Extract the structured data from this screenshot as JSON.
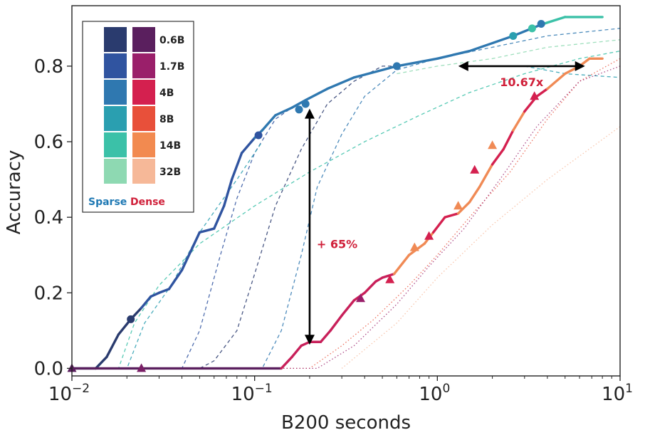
{
  "chart_data": {
    "type": "line",
    "title": "",
    "xlabel": "B200 seconds",
    "ylabel": "Accuracy",
    "xscale": "log",
    "xlim": [
      0.01,
      10
    ],
    "ylim": [
      -0.02,
      0.96
    ],
    "xticks": [
      {
        "value": 0.01,
        "base": "10",
        "exp": "−2"
      },
      {
        "value": 0.1,
        "base": "10",
        "exp": "−1"
      },
      {
        "value": 1,
        "base": "10",
        "exp": "0"
      },
      {
        "value": 10,
        "base": "10",
        "exp": "1"
      }
    ],
    "yticks": [
      {
        "value": 0.0,
        "label": "0.0"
      },
      {
        "value": 0.2,
        "label": "0.2"
      },
      {
        "value": 0.4,
        "label": "0.4"
      },
      {
        "value": 0.6,
        "label": "0.6"
      },
      {
        "value": 0.8,
        "label": "0.8"
      }
    ],
    "grid": false,
    "legend": {
      "placement": "top-left",
      "sizes": [
        "0.6B",
        "1.7B",
        "4B",
        "8B",
        "14B",
        "32B"
      ],
      "sparse_label": "Sparse",
      "dense_label": "Dense",
      "sparse_colors": [
        "#2a3b6e",
        "#3054a0",
        "#2f78b0",
        "#2a9fb0",
        "#3bc1a8",
        "#8ed9b2"
      ],
      "dense_colors": [
        "#5a1f5e",
        "#9a1f6a",
        "#d4204f",
        "#e8503a",
        "#f28a50",
        "#f6b898"
      ]
    },
    "sparse_color": "#1f79b4",
    "dense_color": "#c81e5a",
    "series": [
      {
        "group": "frontier-sparse",
        "x": [
          0.01,
          0.0135,
          0.0155,
          0.018,
          0.021,
          0.024,
          0.027,
          0.03,
          0.034,
          0.04,
          0.05,
          0.06,
          0.068,
          0.075,
          0.085,
          0.1,
          0.11,
          0.13,
          0.16,
          0.19,
          0.25,
          0.35,
          0.6,
          1.0,
          1.5,
          2.6,
          3.7,
          5.0,
          8.0
        ],
        "y": [
          0.0,
          0.0,
          0.03,
          0.09,
          0.13,
          0.16,
          0.19,
          0.2,
          0.21,
          0.26,
          0.36,
          0.37,
          0.43,
          0.5,
          0.57,
          0.61,
          0.63,
          0.67,
          0.69,
          0.71,
          0.74,
          0.77,
          0.8,
          0.82,
          0.84,
          0.88,
          0.91,
          0.93,
          0.93
        ],
        "segment_colors": [
          {
            "from_x": 0.01,
            "color": "#2a3b6e"
          },
          {
            "from_x": 0.022,
            "color": "#3054a0"
          },
          {
            "from_x": 0.09,
            "color": "#2f78b0"
          },
          {
            "from_x": 3.0,
            "color": "#2a9fb0"
          },
          {
            "from_x": 3.4,
            "color": "#3bc1a8"
          }
        ],
        "markers": [
          {
            "x": 0.021,
            "y": 0.13,
            "color": "#2a3b6e"
          },
          {
            "x": 0.105,
            "y": 0.617,
            "color": "#3054a0"
          },
          {
            "x": 0.175,
            "y": 0.685,
            "color": "#2f78b0"
          },
          {
            "x": 0.19,
            "y": 0.7,
            "color": "#2f78b0"
          },
          {
            "x": 0.6,
            "y": 0.8,
            "color": "#2f78b0"
          },
          {
            "x": 2.6,
            "y": 0.88,
            "color": "#2a9fb0"
          },
          {
            "x": 3.3,
            "y": 0.9,
            "color": "#3bc1a8"
          },
          {
            "x": 3.7,
            "y": 0.912,
            "color": "#2f78b0"
          }
        ]
      },
      {
        "group": "frontier-dense",
        "x": [
          0.01,
          0.14,
          0.16,
          0.18,
          0.2,
          0.23,
          0.26,
          0.3,
          0.35,
          0.4,
          0.46,
          0.5,
          0.58,
          0.7,
          0.85,
          0.95,
          1.1,
          1.3,
          1.5,
          1.7,
          2.0,
          2.3,
          2.6,
          3.0,
          3.5,
          4.0,
          5.0,
          6.0,
          6.8,
          8.0
        ],
        "y": [
          0.0,
          0.0,
          0.03,
          0.06,
          0.07,
          0.07,
          0.1,
          0.14,
          0.18,
          0.2,
          0.23,
          0.24,
          0.25,
          0.3,
          0.33,
          0.36,
          0.4,
          0.41,
          0.44,
          0.48,
          0.54,
          0.58,
          0.63,
          0.68,
          0.72,
          0.74,
          0.78,
          0.8,
          0.82,
          0.82
        ],
        "segment_colors": [
          {
            "from_x": 0.01,
            "color": "#5a1f5e"
          },
          {
            "from_x": 0.025,
            "color": "#7a1f66"
          },
          {
            "from_x": 0.13,
            "color": "#c8205a"
          },
          {
            "from_x": 0.55,
            "color": "#f08a55"
          },
          {
            "from_x": 0.9,
            "color": "#d4204f"
          },
          {
            "from_x": 1.25,
            "color": "#f08a55"
          },
          {
            "from_x": 1.85,
            "color": "#d4204f"
          },
          {
            "from_x": 2.4,
            "color": "#f08a55"
          },
          {
            "from_x": 3.0,
            "color": "#d4204f"
          },
          {
            "from_x": 3.6,
            "color": "#f08a55"
          }
        ],
        "markers": [
          {
            "x": 0.01,
            "y": 0.0,
            "color": "#5a1f5e"
          },
          {
            "x": 0.024,
            "y": 0.0,
            "color": "#7a1f66"
          },
          {
            "x": 0.38,
            "y": 0.185,
            "color": "#9a1f6a"
          },
          {
            "x": 0.55,
            "y": 0.235,
            "color": "#d4204f"
          },
          {
            "x": 0.75,
            "y": 0.32,
            "color": "#f08a55"
          },
          {
            "x": 0.9,
            "y": 0.35,
            "color": "#d4204f"
          },
          {
            "x": 1.3,
            "y": 0.43,
            "color": "#f08a55"
          },
          {
            "x": 1.6,
            "y": 0.525,
            "color": "#d4204f"
          },
          {
            "x": 2.0,
            "y": 0.59,
            "color": "#f08a55"
          },
          {
            "x": 3.4,
            "y": 0.72,
            "color": "#d4204f"
          }
        ]
      },
      {
        "group": "sparse-dashed",
        "color": "#2a3b6e",
        "x": [
          0.01,
          0.05,
          0.06,
          0.08,
          0.1,
          0.13,
          0.18,
          0.25,
          0.35,
          0.5,
          0.6
        ],
        "y": [
          0.0,
          0.0,
          0.02,
          0.1,
          0.25,
          0.43,
          0.58,
          0.7,
          0.76,
          0.8,
          0.8
        ]
      },
      {
        "group": "sparse-dashed",
        "color": "#3054a0",
        "x": [
          0.01,
          0.04,
          0.05,
          0.065,
          0.08,
          0.1,
          0.13,
          0.16
        ],
        "y": [
          0.0,
          0.0,
          0.1,
          0.3,
          0.45,
          0.57,
          0.66,
          0.69
        ]
      },
      {
        "group": "sparse-dashed",
        "color": "#2a9fb0",
        "x": [
          0.01,
          0.02,
          0.025,
          0.035,
          0.05,
          0.08,
          0.11
        ],
        "y": [
          0.0,
          0.0,
          0.12,
          0.22,
          0.36,
          0.5,
          0.6
        ]
      },
      {
        "group": "sparse-dashed",
        "color": "#3bc1a8",
        "x": [
          0.01,
          0.018,
          0.022,
          0.03,
          0.05,
          0.1,
          0.2,
          0.4,
          0.8,
          1.5,
          3.0,
          6.0,
          10.0
        ],
        "y": [
          0.0,
          0.0,
          0.12,
          0.22,
          0.33,
          0.43,
          0.52,
          0.6,
          0.67,
          0.73,
          0.78,
          0.82,
          0.84
        ]
      },
      {
        "group": "sparse-dashed",
        "color": "#2f78b0",
        "x": [
          0.01,
          0.11,
          0.14,
          0.18,
          0.22,
          0.3,
          0.4,
          0.6,
          1.0,
          2.0,
          4.0,
          10.0
        ],
        "y": [
          0.0,
          0.0,
          0.1,
          0.3,
          0.48,
          0.62,
          0.72,
          0.79,
          0.82,
          0.85,
          0.88,
          0.9
        ]
      },
      {
        "group": "sparse-dashed",
        "color": "#8ed9b2",
        "x": [
          0.6,
          1.0,
          2.0,
          4.0,
          10.0
        ],
        "y": [
          0.78,
          0.8,
          0.82,
          0.85,
          0.87
        ]
      },
      {
        "group": "sparse-dashed",
        "color": "#2a9fb0",
        "x": [
          3.0,
          5.0,
          10.0
        ],
        "y": [
          0.8,
          0.78,
          0.77
        ]
      },
      {
        "group": "dense-dotted",
        "color": "#e8503a",
        "x": [
          0.01,
          0.2,
          0.3,
          0.45,
          0.7,
          1.0,
          1.5,
          2.5,
          4.0,
          6.0,
          10.0
        ],
        "y": [
          0.0,
          0.0,
          0.06,
          0.13,
          0.22,
          0.3,
          0.4,
          0.52,
          0.66,
          0.76,
          0.82
        ]
      },
      {
        "group": "dense-dotted",
        "color": "#9a1f6a",
        "x": [
          0.01,
          0.22,
          0.35,
          0.6,
          0.9,
          1.4,
          2.2,
          3.5,
          6.0,
          10.0
        ],
        "y": [
          0.0,
          0.0,
          0.06,
          0.17,
          0.27,
          0.37,
          0.5,
          0.64,
          0.76,
          0.8
        ]
      },
      {
        "group": "dense-dotted",
        "color": "#f6b898",
        "x": [
          0.3,
          0.6,
          1.0,
          2.0,
          4.0,
          10.0
        ],
        "y": [
          0.0,
          0.12,
          0.24,
          0.38,
          0.5,
          0.64
        ]
      }
    ],
    "annotations": [
      {
        "text": "+ 65%",
        "x": 0.2,
        "y_from": 0.07,
        "y_to": 0.68,
        "color": "#d0203a"
      },
      {
        "text": "10.67x",
        "y": 0.8,
        "x_from": 1.35,
        "x_to": 6.2,
        "color": "#d0203a"
      }
    ]
  }
}
